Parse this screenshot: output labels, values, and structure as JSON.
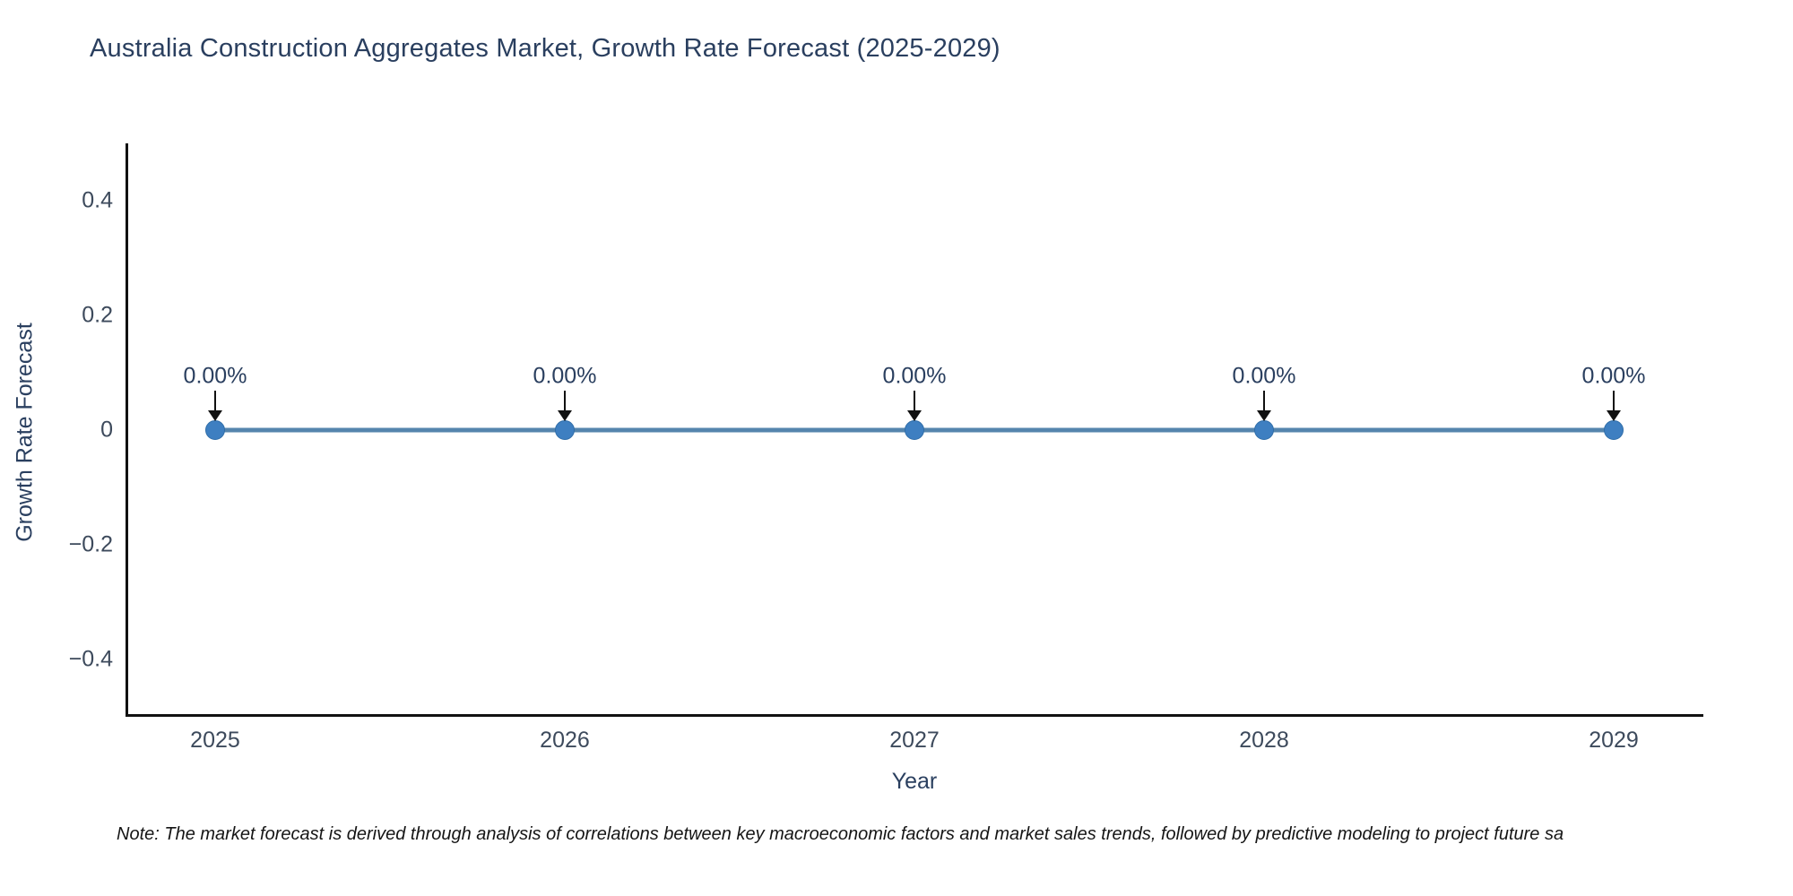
{
  "title": "Australia Construction Aggregates Market, Growth Rate Forecast (2025-2029)",
  "note": "Note: The market forecast is derived through analysis of correlations between key macroeconomic factors and market sales trends, followed by predictive modeling to project future sa",
  "chart_data": {
    "type": "line",
    "title": "Australia Construction Aggregates Market, Growth Rate Forecast (2025-2029)",
    "xlabel": "Year",
    "ylabel": "Growth Rate Forecast",
    "x": [
      2025,
      2026,
      2027,
      2028,
      2029
    ],
    "values": [
      0,
      0,
      0,
      0,
      0
    ],
    "point_labels": [
      "0.00%",
      "0.00%",
      "0.00%",
      "0.00%",
      "0.00%"
    ],
    "xtick_labels": [
      "2025",
      "2026",
      "2027",
      "2028",
      "2029"
    ],
    "yticks": [
      0.4,
      0.2,
      0,
      -0.2,
      -0.4
    ],
    "ytick_labels": [
      "0.4",
      "0.2",
      "0",
      "−0.2",
      "−0.4"
    ],
    "xlim": [
      2024.7436,
      2029.2564
    ],
    "ylim": [
      -0.5,
      0.5
    ],
    "grid": false,
    "legend": false,
    "annotation_arrows": true,
    "colors": {
      "line": "#5585ad",
      "marker": "#3e7fc1",
      "marker_edge": "#2f6da8",
      "arrow": "#111111",
      "text": "#2a3f5f",
      "tick_text": "#3d4a5c",
      "axis": "#111111"
    }
  }
}
